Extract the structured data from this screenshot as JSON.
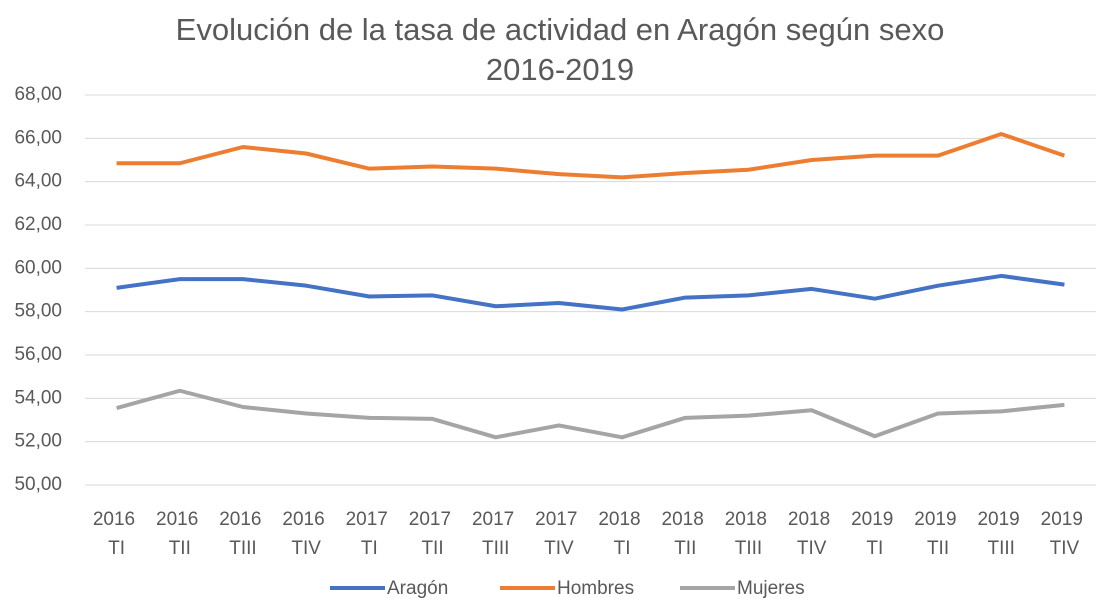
{
  "chart_data": {
    "type": "line",
    "title": "Evolución de la tasa de actividad en Aragón según sexo",
    "subtitle": "2016-2019",
    "categories": [
      "2016 TI",
      "2016 TII",
      "2016 TIII",
      "2016 TIV",
      "2017 TI",
      "2017 TII",
      "2017 TIII",
      "2017 TIV",
      "2018 TI",
      "2018 TII",
      "2018 TIII",
      "2018 TIV",
      "2019 TI",
      "2019 TII",
      "2019 TIII",
      "2019 TIV"
    ],
    "series": [
      {
        "name": "Aragón",
        "color": "#4472c4",
        "values": [
          59.1,
          59.5,
          59.5,
          59.2,
          58.7,
          58.75,
          58.25,
          58.4,
          58.1,
          58.65,
          58.75,
          59.05,
          58.6,
          59.2,
          59.65,
          59.25
        ]
      },
      {
        "name": "Hombres",
        "color": "#ed7d31",
        "values": [
          64.85,
          64.85,
          65.6,
          65.3,
          64.6,
          64.7,
          64.6,
          64.35,
          64.2,
          64.4,
          64.55,
          65.0,
          65.2,
          65.2,
          66.2,
          65.2
        ]
      },
      {
        "name": "Mujeres",
        "color": "#a5a5a5",
        "values": [
          53.55,
          54.35,
          53.6,
          53.3,
          53.1,
          53.05,
          52.2,
          52.75,
          52.2,
          53.1,
          53.2,
          53.45,
          52.25,
          53.3,
          53.4,
          53.7
        ]
      }
    ],
    "ylim": [
      50,
      68
    ],
    "yticks": [
      {
        "value": 50,
        "label": "50,00"
      },
      {
        "value": 52,
        "label": "52,00"
      },
      {
        "value": 54,
        "label": "54,00"
      },
      {
        "value": 56,
        "label": "56,00"
      },
      {
        "value": 58,
        "label": "58,00"
      },
      {
        "value": 60,
        "label": "60,00"
      },
      {
        "value": 62,
        "label": "62,00"
      },
      {
        "value": 64,
        "label": "64,00"
      },
      {
        "value": 66,
        "label": "66,00"
      },
      {
        "value": 68,
        "label": "68,00"
      }
    ],
    "grid": true,
    "legend": "bottom"
  }
}
